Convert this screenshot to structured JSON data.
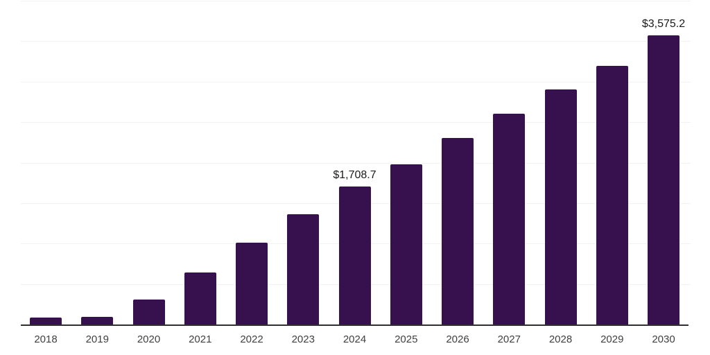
{
  "colors": {
    "bar": "#36114D",
    "axis": "#2f2f2f",
    "gridline": "#f2f2f2",
    "value_label": "#1a1a1a",
    "tick_label": "#404040",
    "background": "#ffffff"
  },
  "chart_data": {
    "type": "bar",
    "title": "",
    "xlabel": "",
    "ylabel": "",
    "categories": [
      "2018",
      "2019",
      "2020",
      "2021",
      "2022",
      "2023",
      "2024",
      "2025",
      "2026",
      "2027",
      "2028",
      "2029",
      "2030"
    ],
    "values": [
      90,
      92,
      310,
      645,
      1010,
      1365,
      1708.7,
      1980,
      2300,
      2605,
      2905,
      3195,
      3575.2
    ],
    "data_labels": {
      "2024": "$1,708.7",
      "2030": "$3,575.2"
    },
    "ylim": [
      0,
      4000
    ],
    "gridline_interval": 500,
    "grid": true,
    "legend": false,
    "y_axis_labels_visible": false
  }
}
